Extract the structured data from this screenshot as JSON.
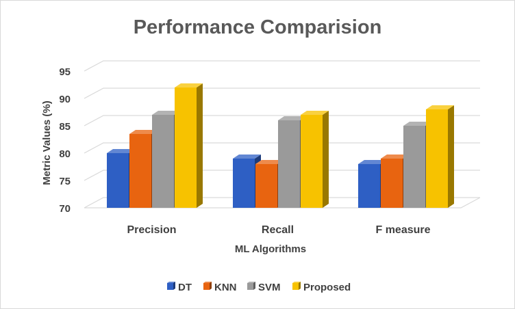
{
  "chart_data": {
    "type": "bar",
    "style": "3d-clustered-column",
    "title": "Performance Comparision",
    "xlabel": "ML Algorithms",
    "ylabel": "Metric Values (%)",
    "ylim": [
      70,
      95
    ],
    "yticks": [
      70,
      75,
      80,
      85,
      90,
      95
    ],
    "categories": [
      "Precision",
      "Recall",
      "F measure"
    ],
    "series": [
      {
        "name": "DT",
        "values": [
          80,
          79,
          78
        ],
        "color": "#2E5FC4"
      },
      {
        "name": "KNN",
        "values": [
          83.5,
          78,
          79
        ],
        "color": "#E86410"
      },
      {
        "name": "SVM",
        "values": [
          87,
          86,
          85
        ],
        "color": "#9A9A9A"
      },
      {
        "name": "Proposed",
        "values": [
          92,
          87,
          88
        ],
        "color": "#F7C200"
      }
    ],
    "grid": true,
    "legend": "bottom"
  }
}
